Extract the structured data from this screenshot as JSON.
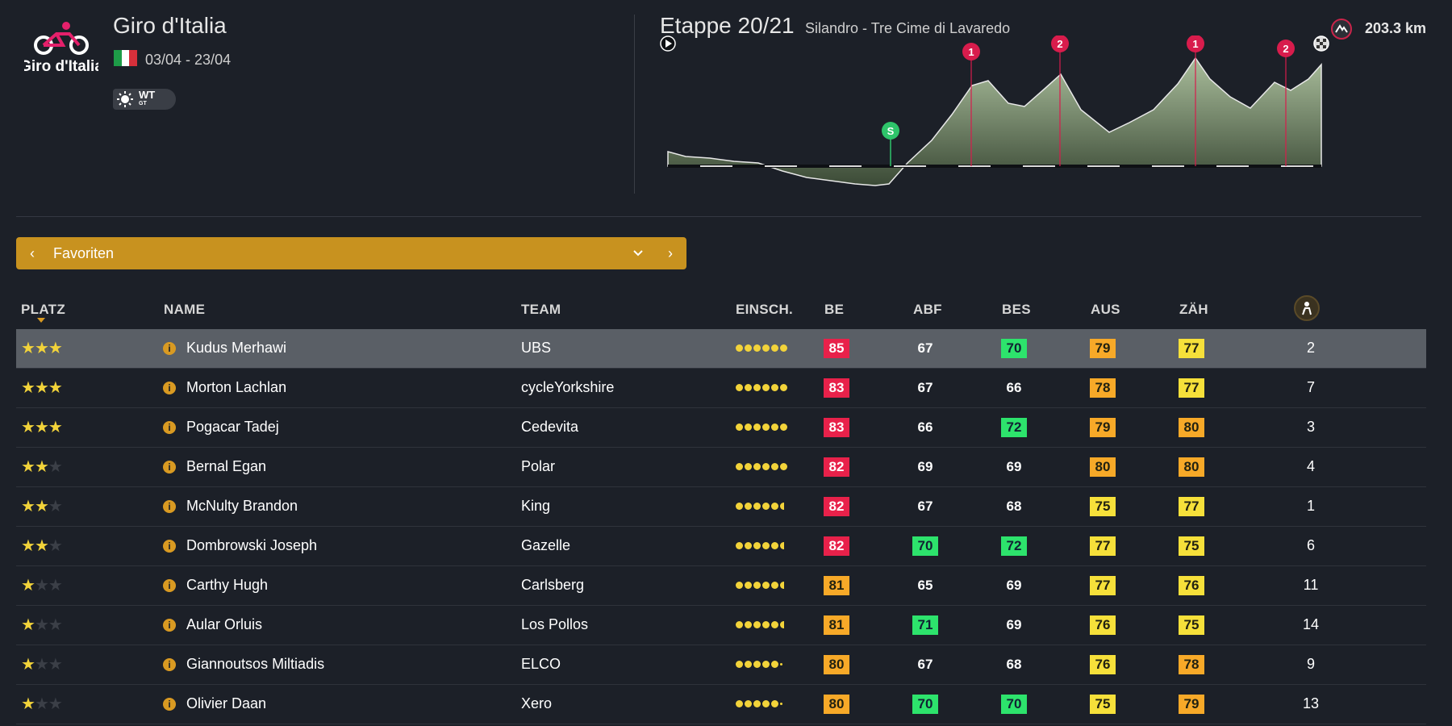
{
  "race": {
    "name": "Giro d'Italia",
    "logo_text": "Giro d'Italia",
    "dates": "03/04 - 23/04",
    "flag_colors": [
      "#1e9c48",
      "#ffffff",
      "#d6303b"
    ],
    "category": "WT",
    "category_sub": "GT"
  },
  "stage": {
    "title": "Etappe 20/21",
    "route": "Silandro - Tre Cime di Lavaredo",
    "distance": "203.3 km",
    "sprint_label": "S",
    "climbs": [
      {
        "category": "1",
        "color": "#d81c4c"
      },
      {
        "category": "2",
        "color": "#d81c4c"
      },
      {
        "category": "1",
        "color": "#d81c4c"
      },
      {
        "category": "2",
        "color": "#d81c4c"
      }
    ]
  },
  "filter": {
    "prev": "‹",
    "label": "Favoriten",
    "dropdown": "⌄",
    "next": "›"
  },
  "columns": {
    "platz": "PLATZ",
    "name": "NAME",
    "team": "TEAM",
    "einsch": "EINSCH.",
    "be": "BE",
    "abf": "ABF",
    "bes": "BES",
    "aus": "AUS",
    "zah": "ZÄH"
  },
  "colors": {
    "red": "#e8214a",
    "green": "#2de36c",
    "orange": "#f7a928",
    "yellow": "#f6e03a",
    "accent": "#c8921f"
  },
  "riders": [
    {
      "stars": 3,
      "name": "Kudus Merhawi",
      "team": "UBS",
      "form": "full6",
      "be": {
        "v": "85",
        "c": "red"
      },
      "abf": {
        "v": "67",
        "c": ""
      },
      "bes": {
        "v": "70",
        "c": "green"
      },
      "aus": {
        "v": "79",
        "c": "orange"
      },
      "zah": {
        "v": "77",
        "c": "yellow"
      },
      "pos": "2",
      "selected": true
    },
    {
      "stars": 3,
      "name": "Morton Lachlan",
      "team": "cycleYorkshire",
      "form": "full6",
      "be": {
        "v": "83",
        "c": "red"
      },
      "abf": {
        "v": "67",
        "c": ""
      },
      "bes": {
        "v": "66",
        "c": ""
      },
      "aus": {
        "v": "78",
        "c": "orange"
      },
      "zah": {
        "v": "77",
        "c": "yellow"
      },
      "pos": "7"
    },
    {
      "stars": 3,
      "name": "Pogacar Tadej",
      "team": "Cedevita",
      "form": "full6",
      "be": {
        "v": "83",
        "c": "red"
      },
      "abf": {
        "v": "66",
        "c": ""
      },
      "bes": {
        "v": "72",
        "c": "green"
      },
      "aus": {
        "v": "79",
        "c": "orange"
      },
      "zah": {
        "v": "80",
        "c": "orange"
      },
      "pos": "3"
    },
    {
      "stars": 2,
      "name": "Bernal Egan",
      "team": "Polar",
      "form": "full6",
      "be": {
        "v": "82",
        "c": "red"
      },
      "abf": {
        "v": "69",
        "c": ""
      },
      "bes": {
        "v": "69",
        "c": ""
      },
      "aus": {
        "v": "80",
        "c": "orange"
      },
      "zah": {
        "v": "80",
        "c": "orange"
      },
      "pos": "4"
    },
    {
      "stars": 2,
      "name": "McNulty Brandon",
      "team": "King",
      "form": "half",
      "be": {
        "v": "82",
        "c": "red"
      },
      "abf": {
        "v": "67",
        "c": ""
      },
      "bes": {
        "v": "68",
        "c": ""
      },
      "aus": {
        "v": "75",
        "c": "yellow"
      },
      "zah": {
        "v": "77",
        "c": "yellow"
      },
      "pos": "1"
    },
    {
      "stars": 2,
      "name": "Dombrowski Joseph",
      "team": "Gazelle",
      "form": "half",
      "be": {
        "v": "82",
        "c": "red"
      },
      "abf": {
        "v": "70",
        "c": "green"
      },
      "bes": {
        "v": "72",
        "c": "green"
      },
      "aus": {
        "v": "77",
        "c": "yellow"
      },
      "zah": {
        "v": "75",
        "c": "yellow"
      },
      "pos": "6"
    },
    {
      "stars": 1,
      "name": "Carthy Hugh",
      "team": "Carlsberg",
      "form": "half",
      "be": {
        "v": "81",
        "c": "orange"
      },
      "abf": {
        "v": "65",
        "c": ""
      },
      "bes": {
        "v": "69",
        "c": ""
      },
      "aus": {
        "v": "77",
        "c": "yellow"
      },
      "zah": {
        "v": "76",
        "c": "yellow"
      },
      "pos": "11"
    },
    {
      "stars": 1,
      "name": "Aular Orluis",
      "team": "Los Pollos",
      "form": "half",
      "be": {
        "v": "81",
        "c": "orange"
      },
      "abf": {
        "v": "71",
        "c": "green"
      },
      "bes": {
        "v": "69",
        "c": ""
      },
      "aus": {
        "v": "76",
        "c": "yellow"
      },
      "zah": {
        "v": "75",
        "c": "yellow"
      },
      "pos": "14"
    },
    {
      "stars": 1,
      "name": "Giannoutsos Miltiadis",
      "team": "ELCO",
      "form": "small",
      "be": {
        "v": "80",
        "c": "orange"
      },
      "abf": {
        "v": "67",
        "c": ""
      },
      "bes": {
        "v": "68",
        "c": ""
      },
      "aus": {
        "v": "76",
        "c": "yellow"
      },
      "zah": {
        "v": "78",
        "c": "orange"
      },
      "pos": "9"
    },
    {
      "stars": 1,
      "name": "Olivier Daan",
      "team": "Xero",
      "form": "small",
      "be": {
        "v": "80",
        "c": "orange"
      },
      "abf": {
        "v": "70",
        "c": "green"
      },
      "bes": {
        "v": "70",
        "c": "green"
      },
      "aus": {
        "v": "75",
        "c": "yellow"
      },
      "zah": {
        "v": "79",
        "c": "orange"
      },
      "pos": "13"
    }
  ]
}
